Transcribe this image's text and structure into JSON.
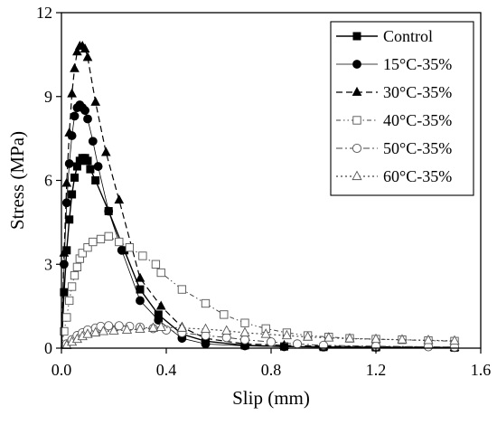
{
  "chart_data": {
    "type": "line",
    "title": "",
    "xlabel": "Slip (mm)",
    "ylabel": "Stress (MPa)",
    "xlim": [
      0.0,
      1.6
    ],
    "ylim": [
      0,
      12
    ],
    "xticks": [
      "0.0",
      "0.4",
      "0.8",
      "1.2",
      "1.6"
    ],
    "yticks": [
      "0",
      "3",
      "6",
      "9",
      "12"
    ],
    "legend_position": "top-right",
    "grid": false,
    "series": [
      {
        "name": "Control",
        "marker": "filled-square",
        "line": "solid",
        "points": [
          [
            0.0,
            0.0
          ],
          [
            0.01,
            2.0
          ],
          [
            0.02,
            3.5
          ],
          [
            0.03,
            4.6
          ],
          [
            0.04,
            5.5
          ],
          [
            0.05,
            6.1
          ],
          [
            0.06,
            6.5
          ],
          [
            0.07,
            6.7
          ],
          [
            0.08,
            6.8
          ],
          [
            0.09,
            6.8
          ],
          [
            0.1,
            6.7
          ],
          [
            0.11,
            6.4
          ],
          [
            0.13,
            6.0
          ],
          [
            0.18,
            4.9
          ],
          [
            0.24,
            3.5
          ],
          [
            0.3,
            2.1
          ],
          [
            0.37,
            1.2
          ],
          [
            0.46,
            0.5
          ],
          [
            0.55,
            0.25
          ],
          [
            0.7,
            0.1
          ],
          [
            0.85,
            0.06
          ],
          [
            1.0,
            0.04
          ],
          [
            1.2,
            0.03
          ],
          [
            1.5,
            0.02
          ]
        ]
      },
      {
        "name": "15°C-35%",
        "marker": "filled-circle",
        "line": "solid-thin",
        "points": [
          [
            0.0,
            0.0
          ],
          [
            0.01,
            3.0
          ],
          [
            0.02,
            5.2
          ],
          [
            0.03,
            6.6
          ],
          [
            0.04,
            7.6
          ],
          [
            0.05,
            8.3
          ],
          [
            0.06,
            8.6
          ],
          [
            0.07,
            8.7
          ],
          [
            0.08,
            8.6
          ],
          [
            0.09,
            8.5
          ],
          [
            0.1,
            8.2
          ],
          [
            0.12,
            7.4
          ],
          [
            0.14,
            6.5
          ],
          [
            0.18,
            4.9
          ],
          [
            0.23,
            3.5
          ],
          [
            0.3,
            1.7
          ],
          [
            0.37,
            1.0
          ],
          [
            0.46,
            0.35
          ],
          [
            0.55,
            0.15
          ],
          [
            0.7,
            0.08
          ],
          [
            0.85,
            0.05
          ],
          [
            1.0,
            0.04
          ],
          [
            1.2,
            0.03
          ],
          [
            1.5,
            0.02
          ]
        ]
      },
      {
        "name": "30°C-35%",
        "marker": "filled-triangle",
        "line": "dashed",
        "points": [
          [
            0.0,
            0.0
          ],
          [
            0.01,
            3.4
          ],
          [
            0.02,
            5.9
          ],
          [
            0.03,
            7.7
          ],
          [
            0.04,
            9.1
          ],
          [
            0.05,
            10.0
          ],
          [
            0.06,
            10.6
          ],
          [
            0.07,
            10.8
          ],
          [
            0.08,
            10.8
          ],
          [
            0.09,
            10.7
          ],
          [
            0.1,
            10.4
          ],
          [
            0.13,
            8.8
          ],
          [
            0.17,
            7.0
          ],
          [
            0.22,
            5.3
          ],
          [
            0.3,
            2.5
          ],
          [
            0.38,
            1.5
          ],
          [
            0.46,
            0.75
          ],
          [
            0.55,
            0.35
          ],
          [
            0.7,
            0.15
          ],
          [
            0.85,
            0.1
          ],
          [
            1.0,
            0.07
          ],
          [
            1.2,
            0.05
          ],
          [
            1.5,
            0.03
          ]
        ]
      },
      {
        "name": "40°C-35%",
        "marker": "open-square",
        "line": "dash-dot-dot",
        "points": [
          [
            0.0,
            0.0
          ],
          [
            0.01,
            0.6
          ],
          [
            0.02,
            1.1
          ],
          [
            0.03,
            1.7
          ],
          [
            0.04,
            2.2
          ],
          [
            0.05,
            2.6
          ],
          [
            0.06,
            2.9
          ],
          [
            0.07,
            3.2
          ],
          [
            0.08,
            3.4
          ],
          [
            0.1,
            3.6
          ],
          [
            0.12,
            3.8
          ],
          [
            0.15,
            3.9
          ],
          [
            0.18,
            4.0
          ],
          [
            0.22,
            3.8
          ],
          [
            0.26,
            3.6
          ],
          [
            0.31,
            3.3
          ],
          [
            0.36,
            3.0
          ],
          [
            0.38,
            2.7
          ],
          [
            0.46,
            2.1
          ],
          [
            0.55,
            1.6
          ],
          [
            0.62,
            1.2
          ],
          [
            0.7,
            0.9
          ],
          [
            0.78,
            0.7
          ],
          [
            0.86,
            0.55
          ],
          [
            0.94,
            0.45
          ],
          [
            1.02,
            0.4
          ],
          [
            1.1,
            0.35
          ],
          [
            1.2,
            0.32
          ],
          [
            1.3,
            0.3
          ],
          [
            1.4,
            0.27
          ],
          [
            1.5,
            0.25
          ]
        ]
      },
      {
        "name": "50°C-35%",
        "marker": "open-circle",
        "line": "dash-dot",
        "points": [
          [
            0.0,
            0.0
          ],
          [
            0.02,
            0.15
          ],
          [
            0.04,
            0.3
          ],
          [
            0.06,
            0.45
          ],
          [
            0.08,
            0.55
          ],
          [
            0.1,
            0.65
          ],
          [
            0.13,
            0.72
          ],
          [
            0.15,
            0.78
          ],
          [
            0.18,
            0.8
          ],
          [
            0.22,
            0.8
          ],
          [
            0.26,
            0.78
          ],
          [
            0.3,
            0.75
          ],
          [
            0.35,
            0.7
          ],
          [
            0.4,
            0.65
          ],
          [
            0.46,
            0.55
          ],
          [
            0.55,
            0.45
          ],
          [
            0.63,
            0.38
          ],
          [
            0.7,
            0.3
          ],
          [
            0.8,
            0.22
          ],
          [
            0.9,
            0.15
          ],
          [
            1.0,
            0.1
          ],
          [
            1.2,
            0.07
          ],
          [
            1.4,
            0.05
          ],
          [
            1.5,
            0.04
          ]
        ]
      },
      {
        "name": "60°C-35%",
        "marker": "open-triangle",
        "line": "dotted",
        "points": [
          [
            0.0,
            0.0
          ],
          [
            0.02,
            0.1
          ],
          [
            0.04,
            0.22
          ],
          [
            0.06,
            0.32
          ],
          [
            0.08,
            0.42
          ],
          [
            0.1,
            0.5
          ],
          [
            0.13,
            0.55
          ],
          [
            0.16,
            0.6
          ],
          [
            0.2,
            0.62
          ],
          [
            0.25,
            0.65
          ],
          [
            0.3,
            0.68
          ],
          [
            0.35,
            0.72
          ],
          [
            0.38,
            0.75
          ],
          [
            0.46,
            0.72
          ],
          [
            0.55,
            0.68
          ],
          [
            0.63,
            0.62
          ],
          [
            0.7,
            0.55
          ],
          [
            0.78,
            0.5
          ],
          [
            0.86,
            0.45
          ],
          [
            0.94,
            0.4
          ],
          [
            1.02,
            0.37
          ],
          [
            1.1,
            0.34
          ],
          [
            1.2,
            0.32
          ],
          [
            1.3,
            0.3
          ],
          [
            1.4,
            0.28
          ],
          [
            1.5,
            0.26
          ]
        ]
      }
    ]
  }
}
